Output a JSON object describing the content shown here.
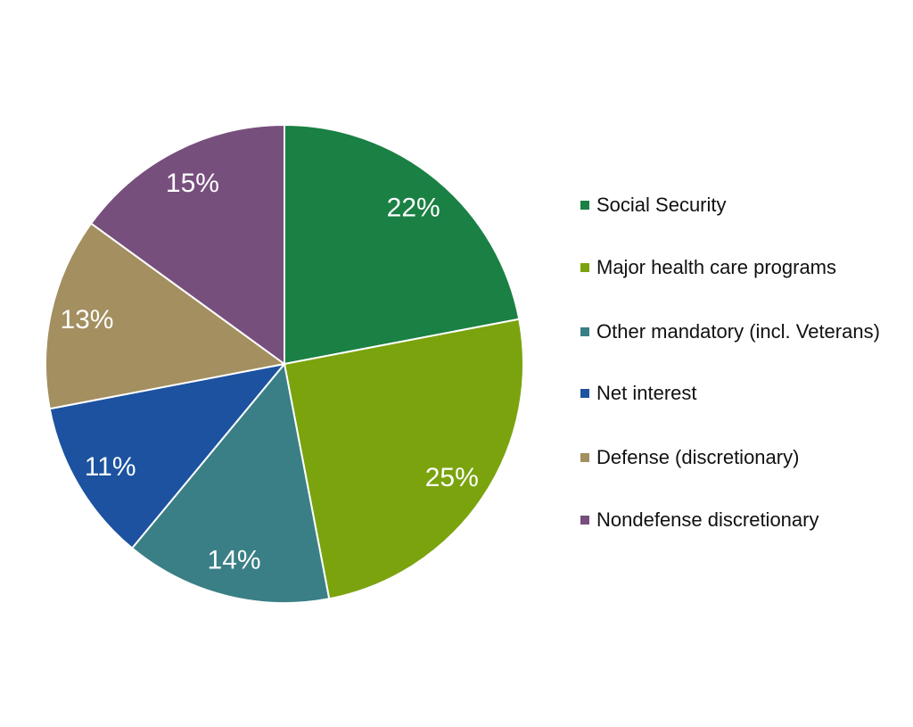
{
  "chart_data": {
    "type": "pie",
    "title": "",
    "start": "top",
    "direction": "clockwise",
    "legend_position": "right",
    "slices": [
      {
        "label": "Social Security",
        "value": 22,
        "display": "22%",
        "color": "#1a8043"
      },
      {
        "label": "Major health care programs",
        "value": 25,
        "display": "25%",
        "color": "#7aa30e"
      },
      {
        "label": "Other mandatory (incl. Veterans)",
        "value": 14,
        "display": "14%",
        "color": "#3a7f86"
      },
      {
        "label": "Net interest",
        "value": 11,
        "display": "11%",
        "color": "#1c52a0"
      },
      {
        "label": "Defense (discretionary)",
        "value": 13,
        "display": "13%",
        "color": "#a38f5f"
      },
      {
        "label": "Nondefense discretionary",
        "value": 15,
        "display": "15%",
        "color": "#774f7d"
      }
    ]
  }
}
